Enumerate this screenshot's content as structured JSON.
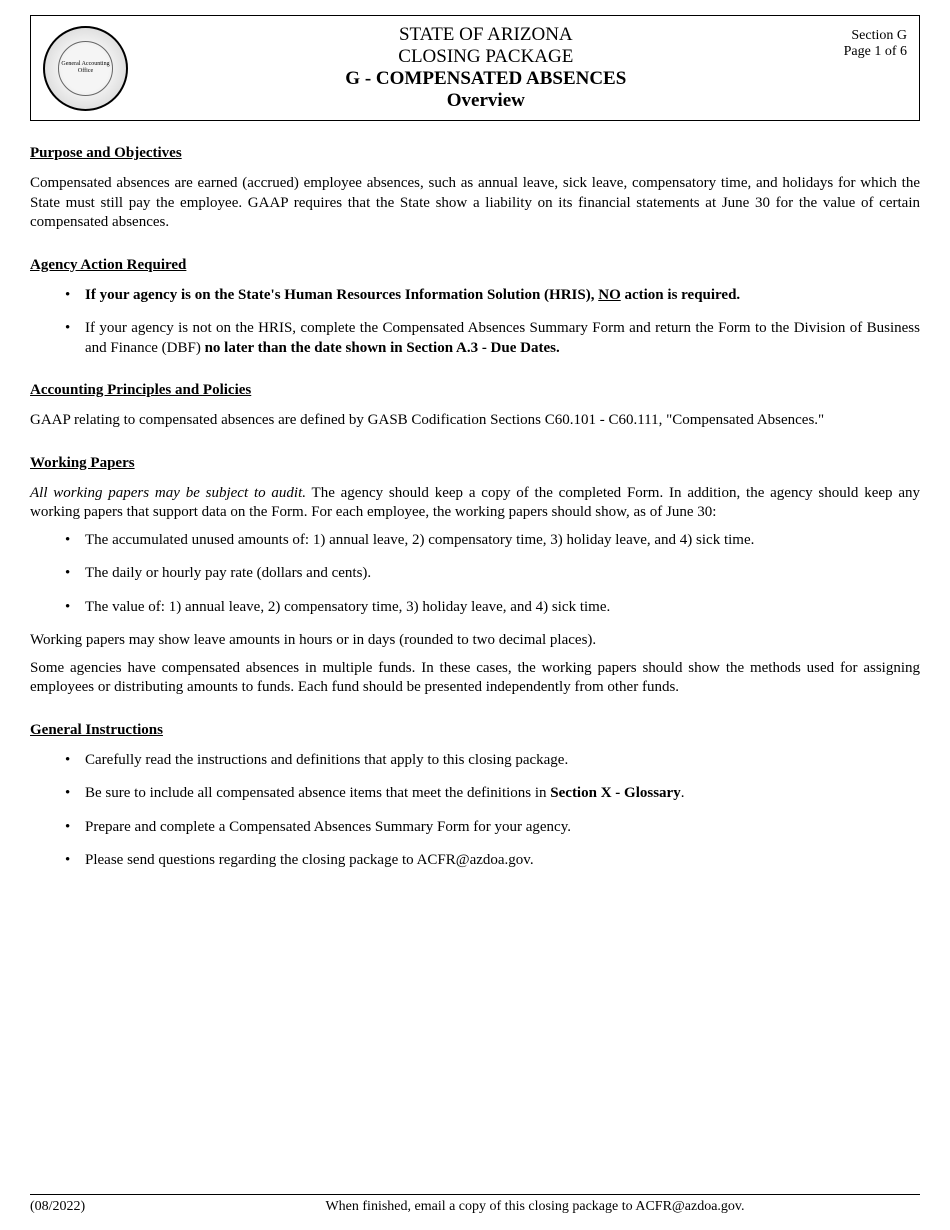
{
  "header": {
    "seal_text": "General Accounting Office",
    "title_line1": "STATE OF ARIZONA",
    "title_line2": "CLOSING PACKAGE",
    "title_line3": "G - COMPENSATED ABSENCES",
    "title_line4": "Overview",
    "section_label": "Section G",
    "page_label": "Page 1 of 6"
  },
  "sections": {
    "purpose": {
      "heading": "Purpose and Objectives",
      "body": "Compensated absences are earned (accrued) employee absences, such as annual leave, sick leave, compensatory time, and holidays for which the State must still pay the employee.  GAAP requires that the State show a liability on its financial statements at June 30 for the value of certain compensated absences."
    },
    "agency_action": {
      "heading": "Agency Action Required",
      "bullet1_prefix": "If your agency is on the State's Human Resources Information Solution (HRIS), ",
      "bullet1_no": "NO",
      "bullet1_suffix": " action is required.",
      "bullet2_part1": "If your agency is not on the HRIS, complete the Compensated Absences Summary Form and return the Form to the Division of Business and Finance (DBF) ",
      "bullet2_bold": "no later than the date shown in Section A.3 - Due Dates."
    },
    "accounting": {
      "heading": "Accounting Principles and Policies",
      "body": "GAAP relating to compensated absences are defined by GASB Codification Sections C60.101 - C60.111, \"Compensated Absences.\""
    },
    "working_papers": {
      "heading": "Working Papers",
      "intro_italic": "All working papers may be subject to audit.",
      "intro_rest": "  The agency should keep a copy of the completed Form.  In addition, the agency should keep any working papers that support data on the Form.  For each employee, the working papers should show, as of June 30:",
      "bullet1": "The accumulated unused amounts of:  1) annual leave,  2) compensatory time,  3) holiday leave, and  4) sick time.",
      "bullet2": "The daily or hourly pay rate (dollars and cents).",
      "bullet3": "The value of:  1) annual leave,  2) compensatory time,  3) holiday leave, and  4) sick time.",
      "para2": "Working papers may show leave amounts in hours or in days (rounded to two decimal places).",
      "para3": "Some agencies have compensated absences in multiple funds.  In these cases, the working papers should show the methods used for assigning employees or distributing amounts to funds.  Each fund should be presented independently from other funds."
    },
    "general_instructions": {
      "heading": "General Instructions",
      "bullet1": "Carefully read the instructions and definitions that apply to this closing package.",
      "bullet2_prefix": "Be sure to include all compensated absence items that meet the definitions in ",
      "bullet2_bold": "Section X - Glossary",
      "bullet2_suffix": ".",
      "bullet3": "Prepare and complete a Compensated Absences Summary Form for your agency.",
      "bullet4": "Please send questions regarding the closing package to ACFR@azdoa.gov."
    }
  },
  "footer": {
    "date": "(08/2022)",
    "text": "When finished, email a copy of this closing package to ACFR@azdoa.gov."
  },
  "colors": {
    "text": "#000000",
    "background": "#ffffff",
    "border": "#000000"
  }
}
